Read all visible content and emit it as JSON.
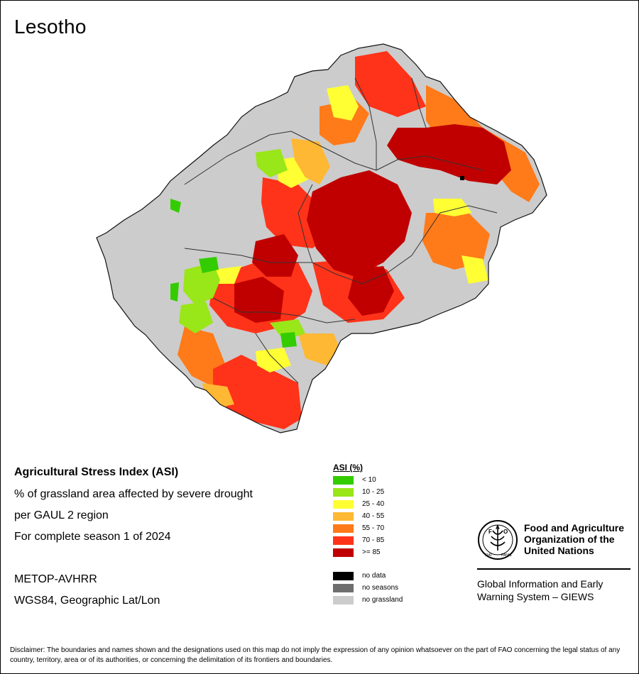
{
  "map": {
    "title": "Lesotho",
    "info": {
      "heading": "Agricultural Stress Index (ASI)",
      "line1": "% of grassland area affected by severe drought",
      "line2": "per GAUL 2 region",
      "line3": "For complete season 1 of 2024",
      "sensor": "METOP-AVHRR",
      "projection": "WGS84, Geographic Lat/Lon"
    },
    "legend": {
      "title": "ASI (%)",
      "classes": [
        {
          "label": "< 10",
          "color": "#33cc00"
        },
        {
          "label": "10 - 25",
          "color": "#99e619"
        },
        {
          "label": "25 - 40",
          "color": "#ffff33"
        },
        {
          "label": "40 - 55",
          "color": "#ffb833"
        },
        {
          "label": "55 - 70",
          "color": "#ff7a19"
        },
        {
          "label": "70 - 85",
          "color": "#ff3319"
        },
        {
          "label": ">= 85",
          "color": "#c00000"
        }
      ],
      "other": [
        {
          "label": "no data",
          "color": "#000000"
        },
        {
          "label": "no seasons",
          "color": "#6e6e6e"
        },
        {
          "label": "no grassland",
          "color": "#cccccc"
        }
      ]
    },
    "organization": {
      "name": "Food and Agriculture Organization of the United Nations",
      "name_line1": "Food and Agriculture",
      "name_line2": "Organization of the",
      "name_line3": "United Nations",
      "system_line1": "Global Information and Early",
      "system_line2": "Warning System – GIEWS"
    },
    "disclaimer": "Disclaimer: The boundaries and names shown and the designations used on this map do not imply the expression of any opinion whatsoever on the part of FAO concerning the legal status of any country, territory, area or of its authorities, or concerning the delimitation of its frontiers and boundaries."
  }
}
